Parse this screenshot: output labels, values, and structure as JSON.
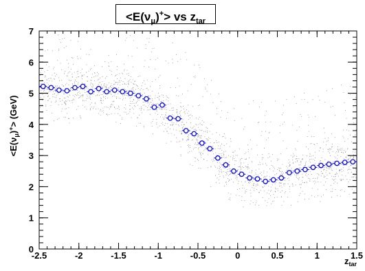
{
  "title": {
    "main": "<E(ν",
    "sub": "μ",
    "close": ")",
    "sup": "+",
    "rest": "> vs z",
    "rest_sub": "tar"
  },
  "ylabel": {
    "main": "<E(ν",
    "sub": "μ",
    "close": ")",
    "sup": "+",
    "rest": "> (GeV)"
  },
  "xlabel": {
    "main": "z",
    "sub": "tar"
  },
  "chart_data": {
    "type": "scatter",
    "xlim": [
      -2.5,
      1.5
    ],
    "ylim": [
      0,
      7
    ],
    "x_ticks": [
      "-2.5",
      "-2",
      "-1.5",
      "-1",
      "-0.5",
      "0",
      "0.5",
      "1",
      "1.5"
    ],
    "y_ticks": [
      "0",
      "1",
      "2",
      "3",
      "4",
      "5",
      "6",
      "7"
    ],
    "marker_color": "#0000ff",
    "scatter_color": "#000000",
    "x_half_bin": 0.05,
    "series": [
      {
        "x": [
          -2.45,
          -2.35,
          -2.25,
          -2.15,
          -2.05,
          -1.95,
          -1.85,
          -1.75,
          -1.65,
          -1.55,
          -1.45,
          -1.35,
          -1.25,
          -1.15,
          -1.05,
          -0.95,
          -0.85,
          -0.75,
          -0.65,
          -0.55,
          -0.45,
          -0.35,
          -0.25,
          -0.15,
          -0.05,
          0.05,
          0.15,
          0.25,
          0.35,
          0.45,
          0.55,
          0.65,
          0.75,
          0.85,
          0.95,
          1.05,
          1.15,
          1.25,
          1.35,
          1.45
        ],
        "y": [
          5.22,
          5.18,
          5.1,
          5.08,
          5.18,
          5.22,
          5.05,
          5.15,
          5.05,
          5.1,
          5.05,
          5.0,
          4.92,
          4.82,
          4.55,
          4.62,
          4.2,
          4.18,
          3.8,
          3.7,
          3.4,
          3.22,
          2.92,
          2.7,
          2.5,
          2.4,
          2.28,
          2.25,
          2.17,
          2.22,
          2.28,
          2.45,
          2.5,
          2.55,
          2.62,
          2.68,
          2.72,
          2.75,
          2.78,
          2.8
        ],
        "y_err": [
          0.06,
          0.06,
          0.06,
          0.06,
          0.06,
          0.06,
          0.06,
          0.06,
          0.06,
          0.06,
          0.06,
          0.06,
          0.06,
          0.06,
          0.06,
          0.06,
          0.06,
          0.06,
          0.06,
          0.06,
          0.06,
          0.06,
          0.06,
          0.06,
          0.06,
          0.06,
          0.06,
          0.06,
          0.06,
          0.06,
          0.06,
          0.06,
          0.06,
          0.06,
          0.06,
          0.06,
          0.06,
          0.06,
          0.06,
          0.06
        ]
      }
    ]
  }
}
